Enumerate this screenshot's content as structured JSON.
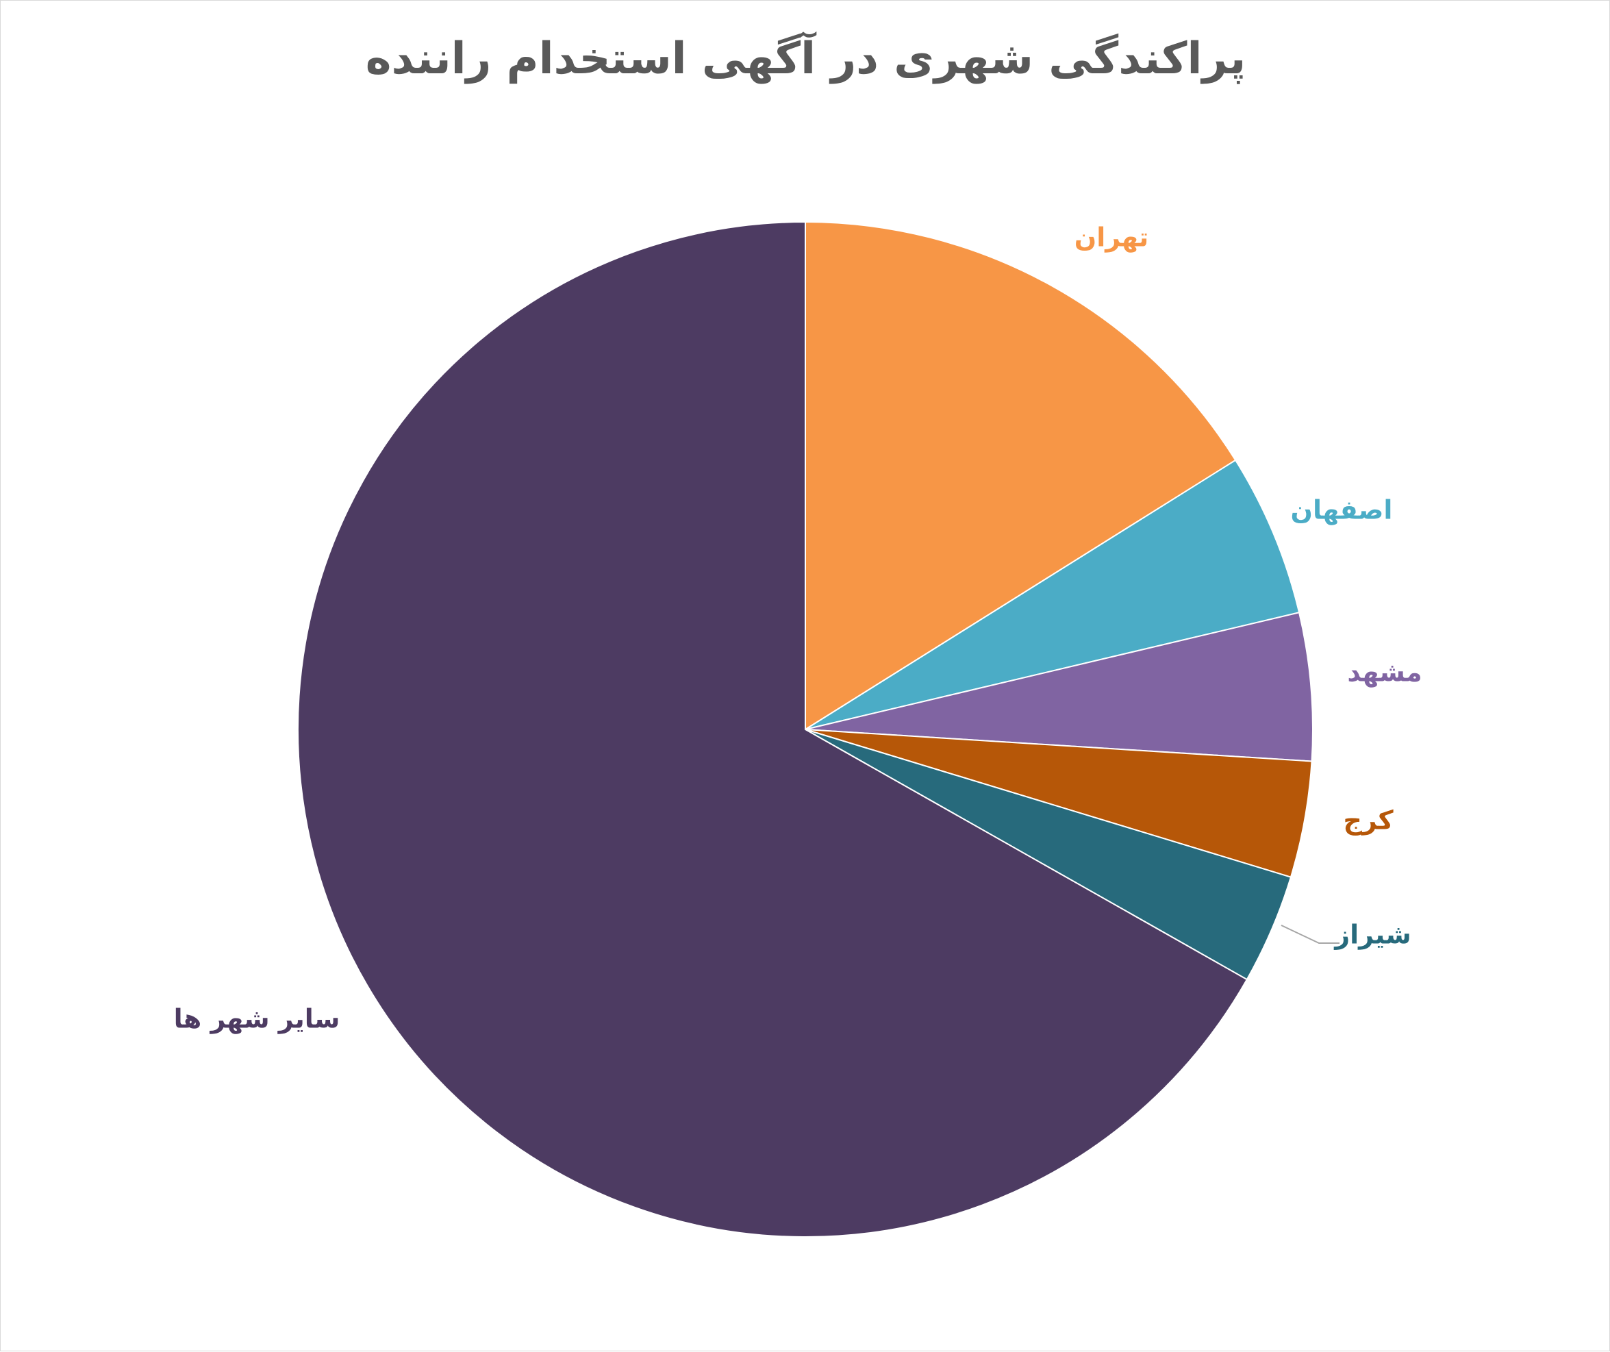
{
  "chart_data": {
    "type": "pie",
    "title": "پراکندگی شهری در آگهی استخدام راننده",
    "categories": [
      "تهران",
      "اصفهان",
      "مشهد",
      "کرج",
      "شیراز",
      "سایر شهر ها"
    ],
    "values": [
      16.1,
      5.2,
      4.7,
      3.7,
      3.5,
      66.8
    ],
    "colors": [
      "#F79646",
      "#4BACC6",
      "#8064A2",
      "#B65708",
      "#276A7C",
      "#4D3B62"
    ],
    "start_angle_deg": 0,
    "direction": "clockwise",
    "legend": "none",
    "labels": "outside"
  }
}
